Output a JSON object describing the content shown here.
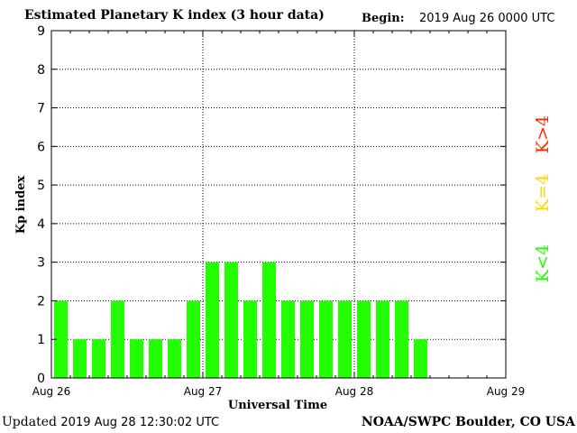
{
  "header": {
    "title": "Estimated Planetary K index (3 hour data)",
    "begin_label": "Begin:",
    "begin_value": "2019 Aug 26 0000 UTC"
  },
  "footer": {
    "updated_label": "Updated",
    "updated_value": "2019 Aug 28 12:30:02 UTC",
    "credit": "NOAA/SWPC Boulder, CO USA"
  },
  "legend": {
    "low": "K<4",
    "mid": "K=4",
    "high": "K>4"
  },
  "colors": {
    "low": "#22ff00",
    "mid": "#ffd700",
    "high": "#ff2a00"
  },
  "chart_data": {
    "type": "bar",
    "xlabel": "Universal Time",
    "ylabel": "Kp index",
    "ylim": [
      0,
      9
    ],
    "yticks": [
      0,
      1,
      2,
      3,
      4,
      5,
      6,
      7,
      8,
      9
    ],
    "xticks": [
      "Aug 26",
      "Aug 27",
      "Aug 28",
      "Aug 29"
    ],
    "x_range_hours": [
      0,
      72
    ],
    "interval_hours": 3,
    "grid": true,
    "values": [
      2,
      1,
      1,
      2,
      1,
      1,
      1,
      2,
      3,
      3,
      2,
      3,
      2,
      2,
      2,
      2,
      2,
      2,
      2,
      1
    ]
  }
}
